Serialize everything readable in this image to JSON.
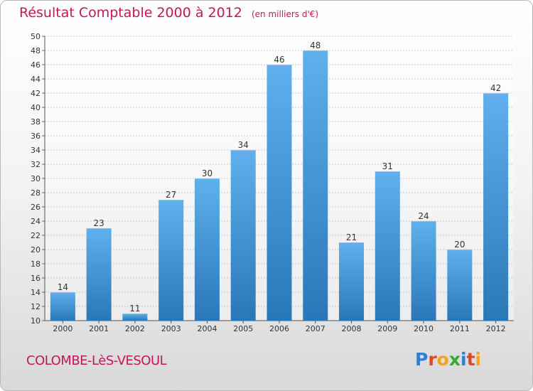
{
  "header": {
    "title": "Résultat Comptable 2000 à 2012",
    "subtitle": "(en milliers d'€)"
  },
  "footer": {
    "commune": "COLOMBE-LèS-VESOUL",
    "logo_text": "Proxiti",
    "logo_colors": [
      "#2e7fd6",
      "#e0462b",
      "#f2a41a",
      "#3aa63a",
      "#2e7fd6",
      "#e0462b",
      "#f2a41a"
    ]
  },
  "colors": {
    "bar_top": "#5fb0ec",
    "bar_bottom": "#2a77b8",
    "title": "#c2185b"
  },
  "chart_data": {
    "type": "bar",
    "title": "Résultat Comptable 2000 à 2012",
    "subtitle": "(en milliers d'€)",
    "categories": [
      "2000",
      "2001",
      "2002",
      "2003",
      "2004",
      "2005",
      "2006",
      "2007",
      "2008",
      "2009",
      "2010",
      "2011",
      "2012"
    ],
    "values": [
      14,
      23,
      11,
      27,
      30,
      34,
      46,
      48,
      21,
      31,
      24,
      20,
      42
    ],
    "ylim": [
      10,
      50
    ],
    "yticks": [
      10,
      12,
      14,
      16,
      18,
      20,
      22,
      24,
      26,
      28,
      30,
      32,
      34,
      36,
      38,
      40,
      42,
      44,
      46,
      48,
      50
    ],
    "grid": true,
    "data_labels": true
  }
}
